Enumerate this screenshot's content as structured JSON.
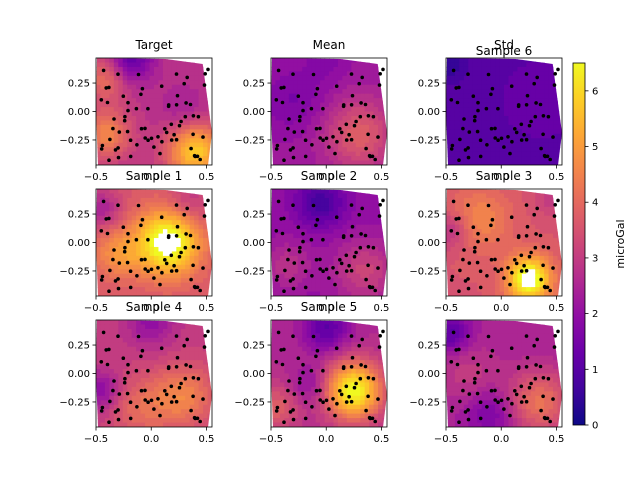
{
  "chart_data": {
    "type": "heatmap",
    "description_scale": {
      "colormap": "plasma",
      "colorbar_label": "microGal",
      "vmin": 0,
      "vmax": 6.5,
      "ticks": [
        "0",
        "1",
        "2",
        "3",
        "4",
        "5",
        "6"
      ]
    },
    "axes_common": {
      "xlim": [
        -0.5,
        0.55
      ],
      "ylim": [
        -0.47,
        0.47
      ],
      "xticks": [
        "−0.5",
        "0.0",
        "0.5"
      ],
      "yticks": [
        "0.25",
        "0.00",
        "−0.25"
      ],
      "xtick_values": [
        -0.5,
        0.0,
        0.5
      ],
      "ytick_values": [
        0.25,
        0.0,
        -0.25
      ]
    },
    "panels": [
      {
        "title": "Target",
        "extra_title": "",
        "base": 2.8,
        "hot": [
          [
            0.4,
            -0.35,
            3.0,
            0.18
          ],
          [
            -0.4,
            -0.2,
            1.8,
            0.15
          ],
          [
            -0.4,
            0.3,
            1.5,
            0.15
          ]
        ],
        "cold": [
          [
            -0.2,
            0.45,
            1.8,
            0.15
          ],
          [
            0.3,
            0.0,
            0.6,
            0.15
          ]
        ]
      },
      {
        "title": "Mean",
        "extra_title": "",
        "base": 2.2,
        "hot": [
          [
            0.3,
            -0.2,
            1.6,
            0.22
          ]
        ],
        "cold": [
          [
            -0.3,
            0.1,
            0.6,
            0.2
          ],
          [
            0.0,
            0.45,
            0.4,
            0.15
          ]
        ]
      },
      {
        "title": "Std",
        "extra_title": "Sample 6",
        "base": 1.0,
        "hot": [
          [
            0.35,
            0.1,
            0.3,
            0.25
          ]
        ],
        "cold": [
          [
            -0.45,
            0.4,
            0.5,
            0.1
          ]
        ]
      },
      {
        "title": "Sample 1",
        "extra_title": "",
        "base": 3.6,
        "hot": [
          [
            0.15,
            0.0,
            3.5,
            0.2
          ],
          [
            -0.3,
            -0.1,
            1.2,
            0.15
          ]
        ],
        "cold": [
          [
            -0.45,
            0.3,
            1.2,
            0.12
          ],
          [
            0.35,
            0.35,
            0.8,
            0.15
          ]
        ]
      },
      {
        "title": "Sample 2",
        "extra_title": "",
        "base": 2.0,
        "hot": [
          [
            0.35,
            -0.25,
            1.2,
            0.2
          ],
          [
            -0.35,
            -0.2,
            0.8,
            0.15
          ]
        ],
        "cold": [
          [
            -0.05,
            0.35,
            1.3,
            0.15
          ]
        ]
      },
      {
        "title": "Sample 3",
        "extra_title": "",
        "base": 3.6,
        "hot": [
          [
            0.25,
            -0.32,
            3.5,
            0.14
          ],
          [
            -0.2,
            0.2,
            1.0,
            0.2
          ]
        ],
        "cold": [
          [
            -0.45,
            0.1,
            1.0,
            0.12
          ],
          [
            0.45,
            0.4,
            0.6,
            0.12
          ]
        ]
      },
      {
        "title": "Sample 4",
        "extra_title": "",
        "base": 3.0,
        "hot": [
          [
            0.3,
            -0.2,
            1.5,
            0.2
          ],
          [
            -0.1,
            -0.3,
            1.0,
            0.2
          ]
        ],
        "cold": [
          [
            -0.45,
            -0.15,
            1.2,
            0.12
          ],
          [
            0.0,
            0.45,
            1.0,
            0.15
          ]
        ]
      },
      {
        "title": "Sample 5",
        "extra_title": "",
        "base": 2.6,
        "hot": [
          [
            0.25,
            -0.15,
            4.0,
            0.18
          ],
          [
            -0.45,
            -0.3,
            1.2,
            0.15
          ]
        ],
        "cold": [
          [
            0.0,
            0.4,
            1.5,
            0.15
          ],
          [
            -0.15,
            -0.1,
            0.8,
            0.12
          ]
        ]
      },
      {
        "title": "",
        "extra_title": "",
        "base": 2.4,
        "hot": [
          [
            0.35,
            -0.25,
            1.8,
            0.2
          ],
          [
            -0.3,
            0.0,
            0.6,
            0.2
          ]
        ],
        "cold": [
          [
            -0.45,
            0.35,
            1.4,
            0.12
          ],
          [
            -0.1,
            -0.35,
            0.9,
            0.15
          ]
        ]
      }
    ]
  }
}
